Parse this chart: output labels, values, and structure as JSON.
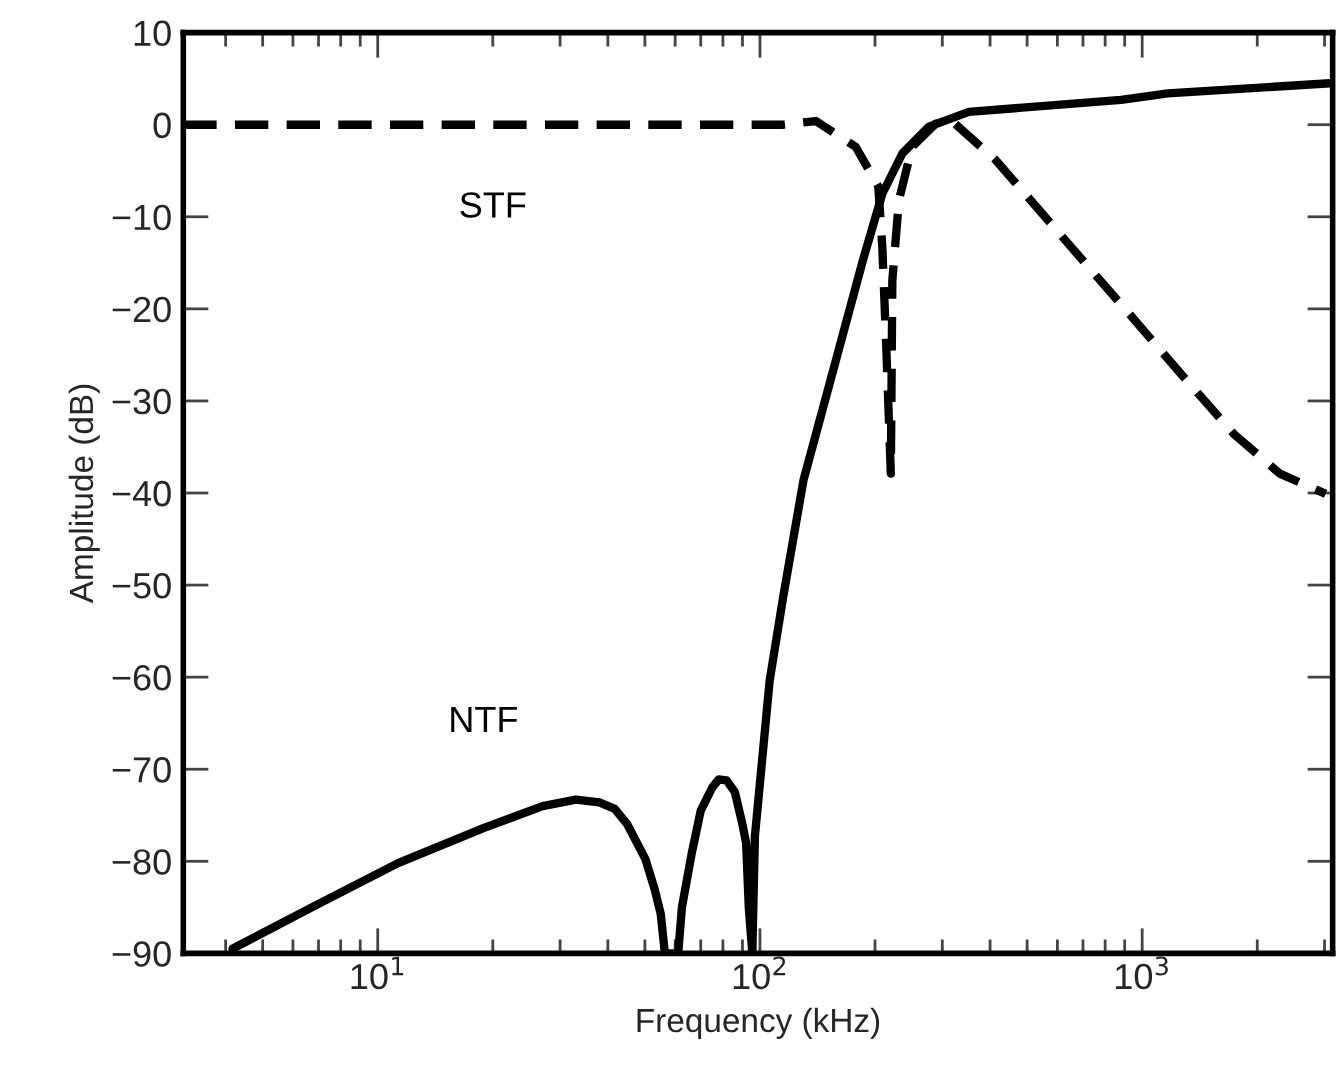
{
  "chart_data": {
    "type": "line",
    "xlabel": "Frequency (kHz)",
    "ylabel": "Amplitude (dB)",
    "log": "x",
    "xlim": [
      3.1,
      3150
    ],
    "ylim": [
      -90,
      10
    ],
    "xticks": [
      {
        "value": 10,
        "label": "10$^{1}$"
      },
      {
        "value": 100,
        "label": "10$^{2}$"
      },
      {
        "value": 1000,
        "label": "10$^{3}$"
      }
    ],
    "yticks": [
      {
        "value": -90,
        "label": "−90"
      },
      {
        "value": -80,
        "label": "−80"
      },
      {
        "value": -70,
        "label": "−70"
      },
      {
        "value": -60,
        "label": "−60"
      },
      {
        "value": -50,
        "label": "−50"
      },
      {
        "value": -40,
        "label": "−40"
      },
      {
        "value": -30,
        "label": "−30"
      },
      {
        "value": -20,
        "label": "−20"
      },
      {
        "value": -10,
        "label": "−10"
      },
      0,
      10
    ],
    "grid": false,
    "legend": false,
    "series": [
      {
        "name": "STF",
        "color": "#000000",
        "line_style": "dashed",
        "x": [
          3.1,
          20,
          60,
          115,
          140,
          178,
          204,
          209,
          214,
          220,
          222,
          231,
          250,
          288,
          324,
          413,
          546,
          722,
          955,
          1259,
          1738,
          2291,
          3020
        ],
        "values": [
          0,
          0,
          0,
          0,
          0.4,
          -2.4,
          -6.7,
          -13.3,
          -24.1,
          -37.9,
          -16.9,
          -8.2,
          -2.4,
          0.1,
          0.1,
          -3.8,
          -9.6,
          -15.4,
          -21.2,
          -27,
          -33.6,
          -37.9,
          -40.1
        ]
      },
      {
        "name": "NTF",
        "color": "#000000",
        "line_style": "solid",
        "x": [
          4.17,
          6.8,
          11.3,
          18.9,
          27,
          33,
          38,
          41.7,
          45,
          50.2,
          53,
          55,
          56.4,
          61.1,
          62.5,
          66.4,
          70,
          75,
          78,
          81.8,
          86,
          90,
          92,
          93.5,
          95.5,
          97,
          106,
          115,
          130,
          158,
          186,
          209,
          236,
          277,
          352,
          881,
          1167,
          3100
        ],
        "values": [
          -89.5,
          -84.9,
          -80.2,
          -76.4,
          -74,
          -73.3,
          -73.6,
          -74.3,
          -76,
          -79.8,
          -83,
          -85.7,
          -90,
          -90,
          -85,
          -79,
          -74.5,
          -72,
          -71.1,
          -71.2,
          -72.5,
          -76,
          -78,
          -85,
          -90,
          -77.3,
          -60.4,
          -51.3,
          -38.6,
          -25.6,
          -14.7,
          -7.5,
          -3.1,
          -0.2,
          1.4,
          2.7,
          3.4,
          4.5
        ]
      }
    ]
  }
}
